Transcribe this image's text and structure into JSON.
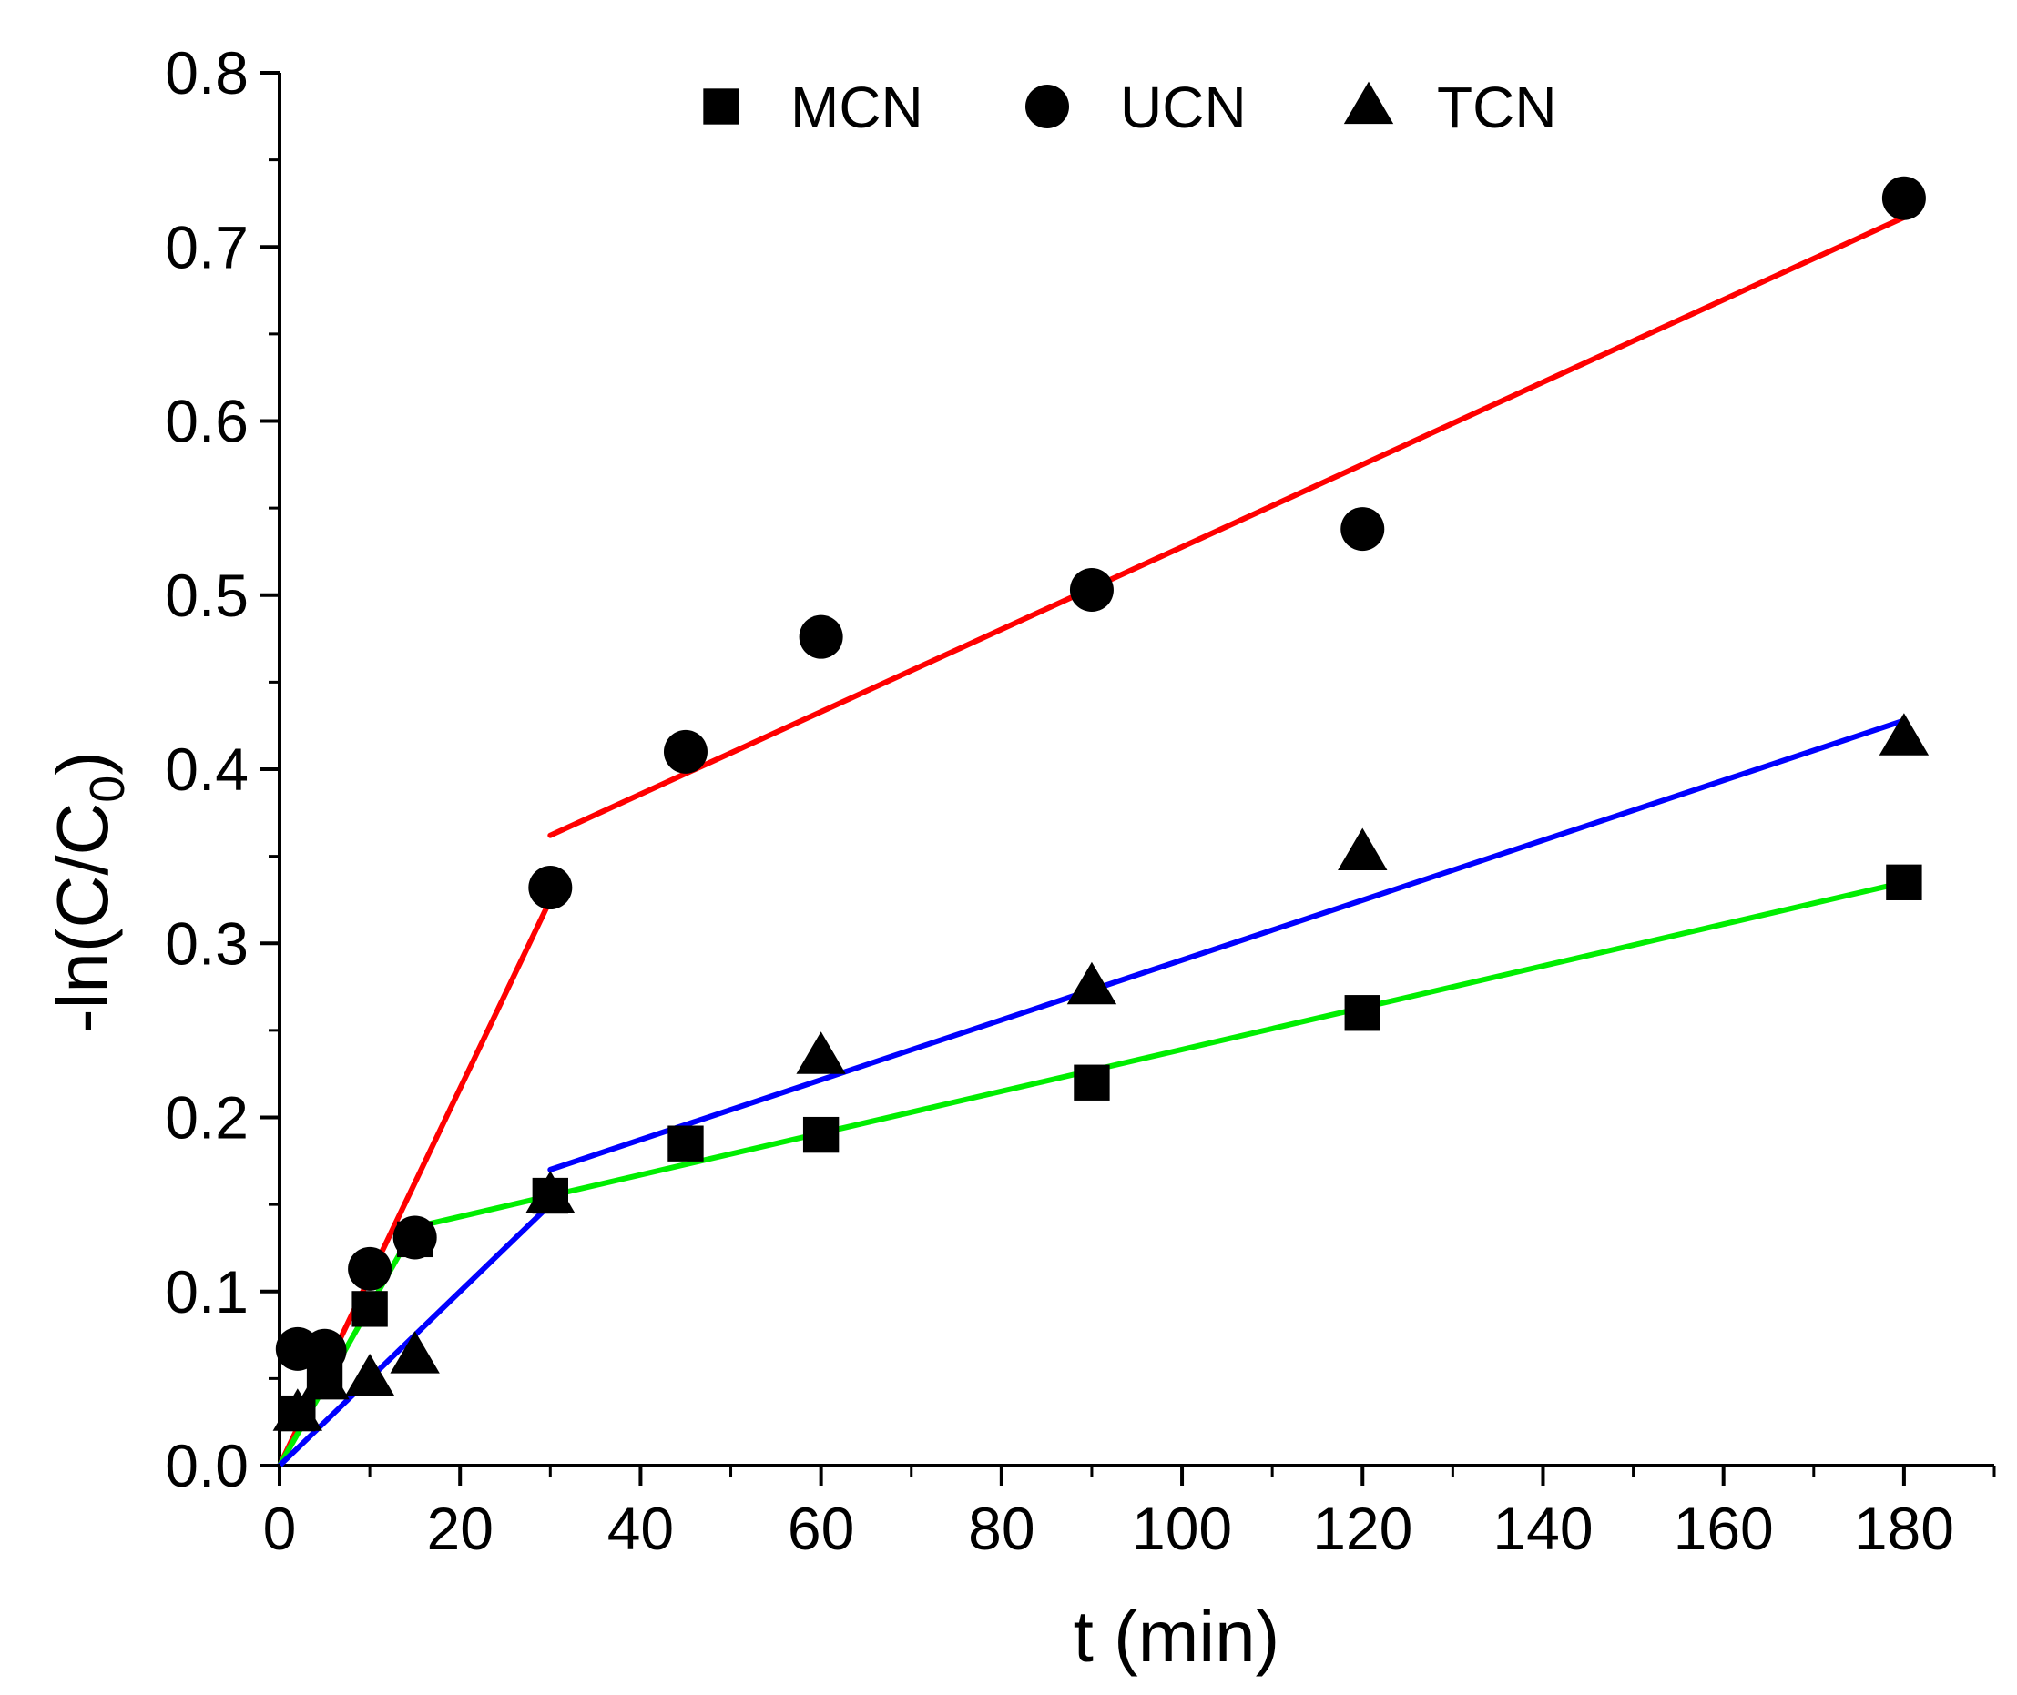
{
  "chart_data": {
    "type": "scatter",
    "title": "",
    "xlabel": "t (min)",
    "ylabel": {
      "main": "-ln(C/C",
      "subscript": "0",
      "close": ")"
    },
    "xlim": [
      0,
      190
    ],
    "ylim": [
      0,
      0.8
    ],
    "xticks": [
      {
        "value": 0,
        "label": "0"
      },
      {
        "value": 20,
        "label": "20"
      },
      {
        "value": 40,
        "label": "40"
      },
      {
        "value": 60,
        "label": "60"
      },
      {
        "value": 80,
        "label": "80"
      },
      {
        "value": 100,
        "label": "100"
      },
      {
        "value": 120,
        "label": "120"
      },
      {
        "value": 140,
        "label": "140"
      },
      {
        "value": 160,
        "label": "160"
      },
      {
        "value": 180,
        "label": "180"
      }
    ],
    "yticks": [
      {
        "value": 0.0,
        "label": "0.0"
      },
      {
        "value": 0.1,
        "label": "0.1"
      },
      {
        "value": 0.2,
        "label": "0.2"
      },
      {
        "value": 0.3,
        "label": "0.3"
      },
      {
        "value": 0.4,
        "label": "0.4"
      },
      {
        "value": 0.5,
        "label": "0.5"
      },
      {
        "value": 0.6,
        "label": "0.6"
      },
      {
        "value": 0.7,
        "label": "0.7"
      },
      {
        "value": 0.8,
        "label": "0.8"
      }
    ],
    "grid": false,
    "legend_position": "top",
    "series": [
      {
        "name": "MCN",
        "marker": "square",
        "x": [
          2,
          5,
          10,
          15,
          30,
          45,
          60,
          90,
          120,
          180
        ],
        "y": [
          0.03,
          0.05,
          0.09,
          0.13,
          0.155,
          0.185,
          0.19,
          0.22,
          0.26,
          0.335
        ]
      },
      {
        "name": "UCN",
        "marker": "circle",
        "x": [
          2,
          5,
          10,
          15,
          30,
          45,
          60,
          90,
          120,
          180
        ],
        "y": [
          0.067,
          0.066,
          0.113,
          0.131,
          0.332,
          0.41,
          0.476,
          0.503,
          0.538,
          0.728
        ]
      },
      {
        "name": "TCN",
        "marker": "triangle",
        "x": [
          2,
          5,
          10,
          15,
          30,
          60,
          90,
          120,
          180
        ],
        "y": [
          0.03,
          0.048,
          0.05,
          0.063,
          0.155,
          0.235,
          0.275,
          0.352,
          0.418
        ]
      }
    ],
    "fit_lines": [
      {
        "series": "UCN",
        "color": "#ff0000",
        "x": [
          0,
          30
        ],
        "y": [
          0.0,
          0.325
        ]
      },
      {
        "series": "UCN",
        "color": "#ff0000",
        "x": [
          30,
          180
        ],
        "y": [
          0.362,
          0.717
        ]
      },
      {
        "series": "MCN",
        "color": "#00ee00",
        "x": [
          0,
          15
        ],
        "y": [
          0.0,
          0.137
        ]
      },
      {
        "series": "MCN",
        "color": "#00ee00",
        "x": [
          15,
          180
        ],
        "y": [
          0.137,
          0.335
        ]
      },
      {
        "series": "TCN",
        "color": "#0000ff",
        "x": [
          0,
          30
        ],
        "y": [
          0.0,
          0.15
        ]
      },
      {
        "series": "TCN",
        "color": "#0000ff",
        "x": [
          30,
          180
        ],
        "y": [
          0.17,
          0.428
        ]
      }
    ]
  }
}
